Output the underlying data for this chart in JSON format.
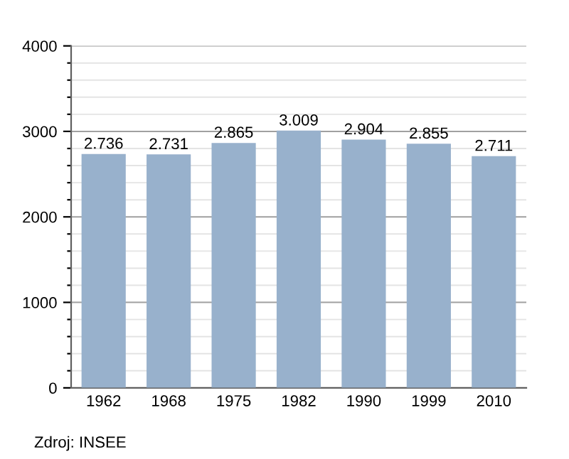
{
  "chart_data": {
    "type": "bar",
    "categories": [
      "1962",
      "1968",
      "1975",
      "1982",
      "1990",
      "1999",
      "2010"
    ],
    "values": [
      2736,
      2731,
      2865,
      3009,
      2904,
      2855,
      2711
    ],
    "value_labels": [
      "2.736",
      "2.731",
      "2.865",
      "3.009",
      "2.904",
      "2.855",
      "2.711"
    ],
    "color": "#98b1cc",
    "ylim": [
      0,
      4000
    ],
    "yticks": [
      0,
      {
        "value": 200,
        "label": null
      },
      {
        "value": 400,
        "label": null
      },
      {
        "value": 600,
        "label": null
      },
      {
        "value": 800,
        "label": null
      },
      1000,
      {
        "value": 1200,
        "label": null
      },
      {
        "value": 1400,
        "label": null
      },
      {
        "value": 1600,
        "label": null
      },
      {
        "value": 1800,
        "label": null
      },
      2000,
      {
        "value": 2200,
        "label": null
      },
      {
        "value": 2400,
        "label": null
      },
      {
        "value": 2600,
        "label": null
      },
      {
        "value": 2800,
        "label": null
      },
      3000,
      {
        "value": 3200,
        "label": null
      },
      {
        "value": 3400,
        "label": null
      },
      {
        "value": 3600,
        "label": null
      },
      {
        "value": 3800,
        "label": null
      },
      4000
    ],
    "grid": "y",
    "annotations": [
      "Zdroj: INSEE"
    ]
  }
}
